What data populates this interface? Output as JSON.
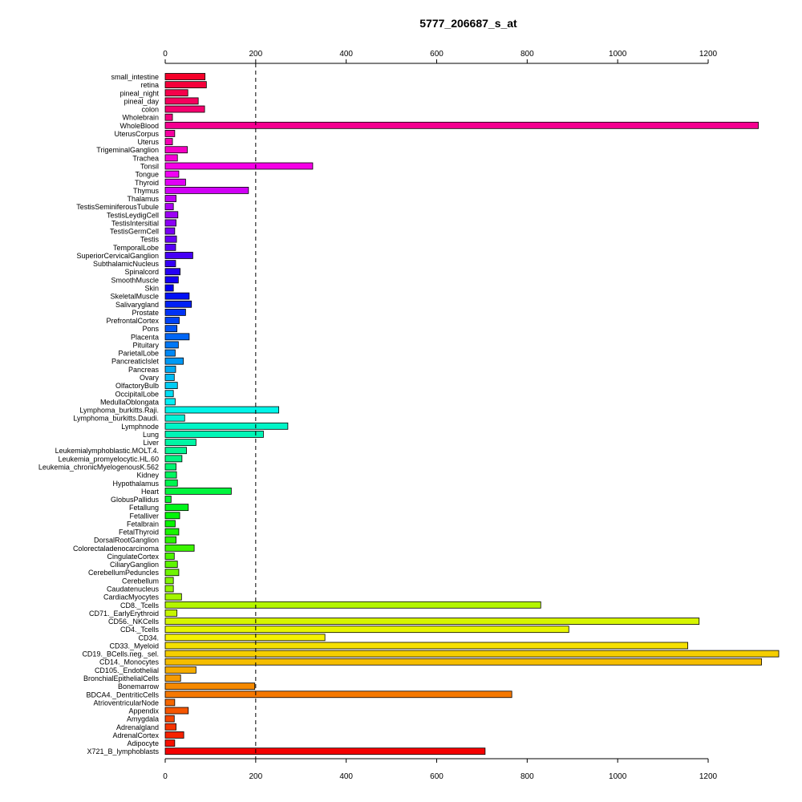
{
  "chart_data": {
    "type": "bar",
    "orientation": "horizontal",
    "title": "5777_206687_s_at",
    "xlabel": "",
    "ylabel": "",
    "xlim": [
      0,
      1350
    ],
    "x_ticks": [
      0,
      200,
      400,
      600,
      800,
      1000,
      1200
    ],
    "x_tick_labels": [
      "0",
      "200",
      "400",
      "600",
      "800",
      "1000",
      "1200"
    ],
    "reference_line": 200,
    "grid": false,
    "categories": [
      "small_intestine",
      "retina",
      "pineal_night",
      "pineal_day",
      "colon",
      "Wholebrain",
      "WholeBlood",
      "UterusCorpus",
      "Uterus",
      "TrigeminalGanglion",
      "Trachea",
      "Tonsil",
      "Tongue",
      "Thyroid",
      "Thymus",
      "Thalamus",
      "TestisSeminiferousTubule",
      "TestisLeydigCell",
      "TestisIntersitial",
      "TestisGermCell",
      "Testis",
      "TemporalLobe",
      "SuperiorCervicalGanglion",
      "SubthalamicNucleus",
      "Spinalcord",
      "SmoothMuscle",
      "Skin",
      "SkeletalMuscle",
      "Salivarygland",
      "Prostate",
      "PrefrontalCortex",
      "Pons",
      "Placenta",
      "Pituitary",
      "ParietalLobe",
      "PancreaticIslet",
      "Pancreas",
      "Ovary",
      "OlfactoryBulb",
      "OccipitalLobe",
      "MedullaOblongata",
      "Lymphoma_burkitts.Raji.",
      "Lymphoma_burkitts.Daudi.",
      "Lymphnode",
      "Lung",
      "Liver",
      "Leukemialymphoblastic.MOLT.4.",
      "Leukemia_promyelocytic.HL.60",
      "Leukemia_chronicMyelogenousK.562",
      "Kidney",
      "Hypothalamus",
      "Heart",
      "GlobusPallidus",
      "Fetallung",
      "Fetalliver",
      "Fetalbrain",
      "FetalThyroid",
      "DorsalRootGanglion",
      "Colorectaladenocarcinoma",
      "CingulateCortex",
      "CiliaryGanglion",
      "CerebellumPeduncles",
      "Cerebellum",
      "Caudatenucleus",
      "CardiacMyocytes",
      "CD8._Tcells",
      "CD71._EarlyErythroid",
      "CD56._NKCells",
      "CD4._Tcells",
      "CD34.",
      "CD33._Myeloid",
      "CD19._BCells.neg._sel.",
      "CD14._Monocytes",
      "CD105._Endothelial",
      "BronchialEpithelialCells",
      "Bonemarrow",
      "BDCA4._DentriticCells",
      "AtrioventricularNode",
      "Appendix",
      "Amygdala",
      "Adrenalgland",
      "AdrenalCortex",
      "Adipocyte",
      "X721_B_lymphoblasts"
    ],
    "values": [
      88,
      91,
      50,
      73,
      87,
      16,
      1311,
      21,
      16,
      49,
      27,
      326,
      30,
      45,
      184,
      24,
      18,
      28,
      24,
      21,
      25,
      23,
      61,
      23,
      33,
      29,
      18,
      53,
      58,
      45,
      31,
      26,
      53,
      29,
      22,
      40,
      23,
      20,
      27,
      18,
      22,
      251,
      43,
      271,
      217,
      68,
      47,
      37,
      24,
      25,
      27,
      146,
      13,
      51,
      32,
      22,
      30,
      24,
      64,
      20,
      27,
      30,
      18,
      18,
      36,
      830,
      26,
      1180,
      892,
      353,
      1155,
      1356,
      1318,
      68,
      34,
      198,
      766,
      21,
      51,
      20,
      24,
      41,
      21,
      707
    ]
  }
}
